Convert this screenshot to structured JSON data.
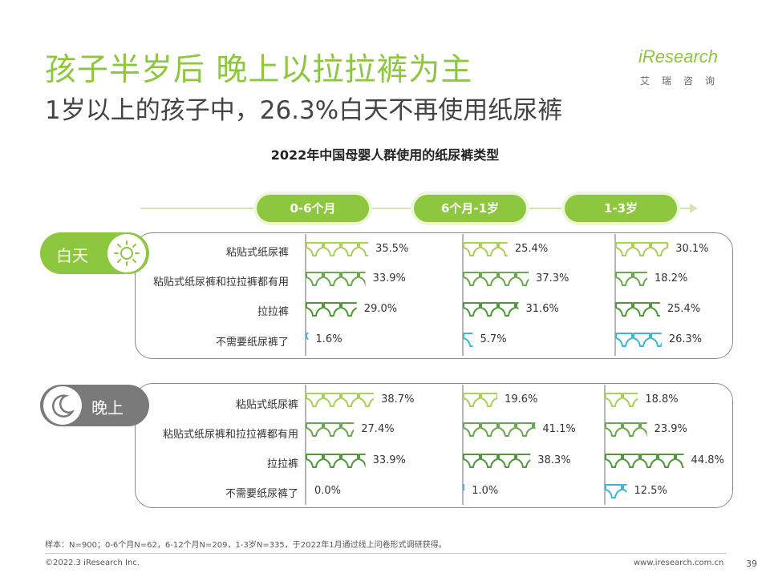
{
  "header": {
    "title": "孩子半岁后 晚上以拉拉裤为主",
    "subtitle": "1岁以上的孩子中，26.3%白天不再使用纸尿裤"
  },
  "logo": {
    "text": "iResearch",
    "sub": "艾瑞咨询"
  },
  "chart_data": {
    "type": "bar",
    "title": "2022年中国母婴人群使用的纸尿裤类型",
    "groups": [
      "0-6个月",
      "6个月-1岁",
      "1-3岁"
    ],
    "categories": [
      "粘贴式纸尿裤",
      "粘贴式纸尿裤和拉拉裤都有用",
      "拉拉裤",
      "不需要纸尿裤了"
    ],
    "colors": {
      "day": "#8dc63f",
      "night": "#8dc63f",
      "tape": "#a8d05a",
      "both": "#6aa84f",
      "pants": "#4e9a3a",
      "none": "#3fb6d3"
    },
    "panels": [
      {
        "name": "白天",
        "icon": "sun-icon",
        "values": [
          [
            35.5,
            33.9,
            29.0,
            1.6
          ],
          [
            25.4,
            37.3,
            31.6,
            5.7
          ],
          [
            30.1,
            18.2,
            25.4,
            26.3
          ]
        ],
        "labels": [
          [
            "35.5%",
            "33.9%",
            "29.0%",
            "1.6%"
          ],
          [
            "25.4%",
            "37.3%",
            "31.6%",
            "5.7%"
          ],
          [
            "30.1%",
            "18.2%",
            "25.4%",
            "26.3%"
          ]
        ]
      },
      {
        "name": "晚上",
        "icon": "moon-icon",
        "values": [
          [
            38.7,
            27.4,
            33.9,
            0.0
          ],
          [
            19.6,
            41.1,
            38.3,
            1.0
          ],
          [
            18.8,
            23.9,
            44.8,
            12.5
          ]
        ],
        "labels": [
          [
            "38.7%",
            "27.4%",
            "33.9%",
            "0.0%"
          ],
          [
            "19.6%",
            "41.1%",
            "38.3%",
            "1.0%"
          ],
          [
            "18.8%",
            "23.9%",
            "44.8%",
            "12.5%"
          ]
        ]
      }
    ]
  },
  "footer": {
    "note": "样本：N=900；0-6个月N=62，6-12个月N=209，1-3岁N=335，于2022年1月通过线上问卷形式调研获得。",
    "copyright": "©2022.3 iResearch Inc.",
    "website": "www.iresearch.com.cn",
    "page": "39"
  }
}
